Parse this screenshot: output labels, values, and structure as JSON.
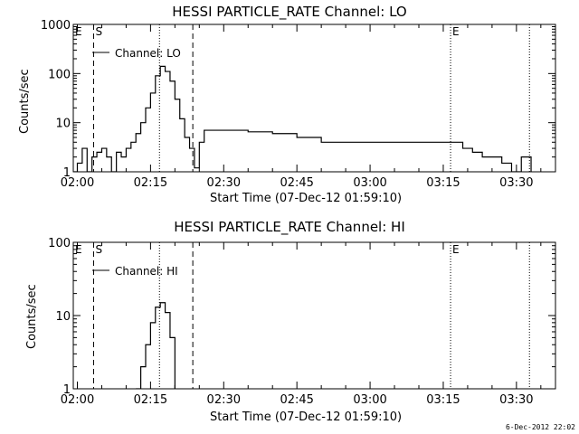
{
  "chart_data": [
    {
      "type": "line",
      "title": "HESSI PARTICLE_RATE Channel: LO",
      "ylabel": "Counts/sec",
      "xlabel": "Start Time (07-Dec-12 01:59:10)",
      "yscale": "log",
      "ylim": [
        1,
        1000
      ],
      "yticks": [
        1,
        10,
        100,
        1000
      ],
      "ytick_labels": [
        "1",
        "10",
        "100",
        "1000"
      ],
      "xlim": [
        "01:59:10",
        "03:38:00"
      ],
      "xticks": [
        "02:00",
        "02:15",
        "02:30",
        "02:45",
        "03:00",
        "03:15",
        "03:30"
      ],
      "legend": "Channel: LO",
      "markers": [
        {
          "label": "E",
          "time": "01:59:10",
          "style": "dotted"
        },
        {
          "label": "S",
          "time": "02:03:20",
          "style": "dashed"
        },
        {
          "label": "",
          "time": "02:16:50",
          "style": "dotted"
        },
        {
          "label": "",
          "time": "02:23:40",
          "style": "dashed"
        },
        {
          "label": "E",
          "time": "03:16:30",
          "style": "dotted"
        },
        {
          "label": "",
          "time": "03:32:40",
          "style": "dotted"
        }
      ],
      "series": [
        {
          "name": "Channel: LO",
          "times": [
            "01:59:10",
            "02:00:00",
            "02:01:00",
            "02:02:00",
            "02:03:00",
            "02:04:00",
            "02:05:00",
            "02:06:00",
            "02:07:00",
            "02:08:00",
            "02:09:00",
            "02:10:00",
            "02:11:00",
            "02:12:00",
            "02:13:00",
            "02:14:00",
            "02:15:00",
            "02:16:00",
            "02:17:00",
            "02:18:00",
            "02:19:00",
            "02:20:00",
            "02:21:00",
            "02:22:00",
            "02:23:00",
            "02:24:00",
            "02:25:00",
            "02:26:00",
            "02:27:00",
            "02:30:00",
            "02:35:00",
            "02:40:00",
            "02:45:00",
            "02:50:00",
            "02:55:00",
            "03:00:00",
            "03:05:00",
            "03:10:00",
            "03:15:00",
            "03:17:00",
            "03:19:00",
            "03:21:00",
            "03:23:00",
            "03:25:00",
            "03:27:00",
            "03:29:00",
            "03:31:00",
            "03:33:00"
          ],
          "values": [
            1,
            1.5,
            3,
            1,
            2,
            2.5,
            3,
            2,
            1,
            2.5,
            2,
            3,
            4,
            6,
            10,
            20,
            40,
            90,
            140,
            110,
            70,
            30,
            12,
            5,
            3,
            1.2,
            4,
            7,
            7,
            7,
            6.5,
            6,
            5,
            4,
            4,
            4,
            4,
            4,
            4,
            4,
            3,
            2.5,
            2,
            2,
            1.5,
            1,
            2,
            1
          ]
        }
      ]
    },
    {
      "type": "line",
      "title": "HESSI PARTICLE_RATE Channel: HI",
      "ylabel": "Counts/sec",
      "xlabel": "Start Time (07-Dec-12 01:59:10)",
      "yscale": "log",
      "ylim": [
        1,
        100
      ],
      "yticks": [
        1,
        10,
        100
      ],
      "ytick_labels": [
        "1",
        "10",
        "100"
      ],
      "xlim": [
        "01:59:10",
        "03:38:00"
      ],
      "xticks": [
        "02:00",
        "02:15",
        "02:30",
        "02:45",
        "03:00",
        "03:15",
        "03:30"
      ],
      "legend": "Channel: HI",
      "markers": [
        {
          "label": "E",
          "time": "01:59:10",
          "style": "dotted"
        },
        {
          "label": "S",
          "time": "02:03:20",
          "style": "dashed"
        },
        {
          "label": "",
          "time": "02:16:50",
          "style": "dotted"
        },
        {
          "label": "",
          "time": "02:23:40",
          "style": "dashed"
        },
        {
          "label": "E",
          "time": "03:16:30",
          "style": "dotted"
        },
        {
          "label": "",
          "time": "03:32:40",
          "style": "dotted"
        }
      ],
      "series": [
        {
          "name": "Channel: HI",
          "times": [
            "02:12:00",
            "02:13:00",
            "02:14:00",
            "02:15:00",
            "02:16:00",
            "02:17:00",
            "02:18:00",
            "02:19:00",
            "02:20:00"
          ],
          "values": [
            1,
            2,
            4,
            8,
            13,
            15,
            11,
            5,
            1
          ]
        }
      ]
    }
  ],
  "timestamp": "6-Dec-2012 22:02"
}
